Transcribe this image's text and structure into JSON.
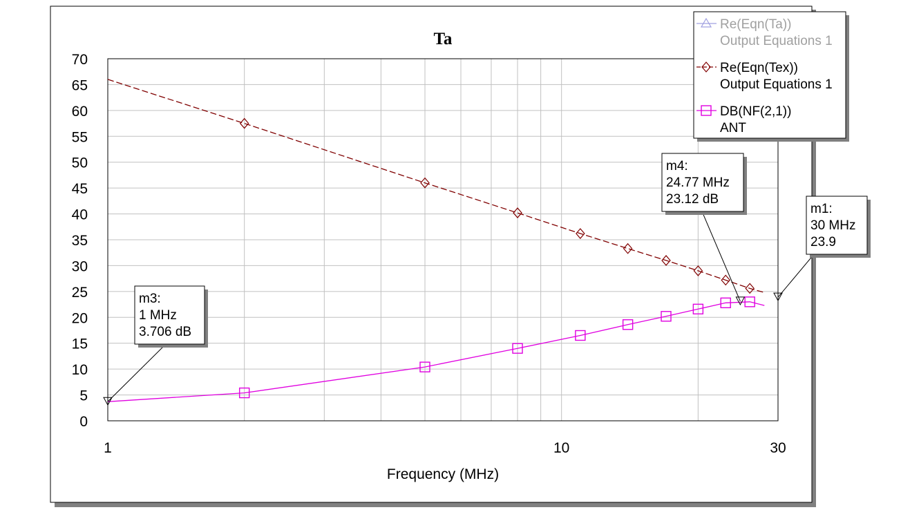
{
  "chart_data": {
    "type": "line",
    "title": "Ta",
    "xlabel": "Frequency (MHz)",
    "ylabel": "",
    "x_scale": "log",
    "xlim": [
      1,
      30
    ],
    "ylim": [
      0,
      70
    ],
    "x_ticks": [
      "1",
      "10",
      "30"
    ],
    "y_ticks": [
      "0",
      "5",
      "10",
      "15",
      "20",
      "25",
      "30",
      "35",
      "40",
      "45",
      "50",
      "55",
      "60",
      "65",
      "70"
    ],
    "grid": true,
    "legend_position": "top-right",
    "series": [
      {
        "name": "Re(Eqn(Ta))",
        "subname": "Output Equations 1",
        "color": "#a0a0e0",
        "style": "solid",
        "marker": "triangle",
        "x": [],
        "y": []
      },
      {
        "name": "Re(Eqn(Tex))",
        "subname": "Output Equations 1",
        "color": "#800000",
        "style": "dashed",
        "marker": "diamond",
        "x": [
          1,
          2,
          5,
          8,
          11,
          14,
          17,
          20,
          23,
          26,
          28
        ],
        "y": [
          66,
          57.5,
          46,
          40.2,
          36.2,
          33.3,
          31,
          29,
          27.2,
          25.6,
          24.8
        ],
        "marker_x": [
          2,
          5,
          8,
          11,
          14,
          17,
          20,
          23,
          26
        ]
      },
      {
        "name": "DB(NF(2,1))",
        "subname": "ANT",
        "color": "#e000e0",
        "style": "solid",
        "marker": "square",
        "x": [
          1,
          2,
          5,
          8,
          11,
          14,
          17,
          20,
          23,
          26,
          28
        ],
        "y": [
          3.706,
          5.4,
          10.4,
          14,
          16.5,
          18.6,
          20.2,
          21.6,
          22.8,
          23,
          22.3
        ],
        "marker_x": [
          2,
          5,
          8,
          11,
          14,
          17,
          20,
          23,
          26
        ]
      }
    ],
    "markers": [
      {
        "name": "m3",
        "lines": [
          "m3:",
          "1 MHz",
          "3.706 dB"
        ],
        "x": 1,
        "y": 3.706
      },
      {
        "name": "m4",
        "lines": [
          "m4:",
          "24.77 MHz",
          "23.12 dB"
        ],
        "x": 24.77,
        "y": 23.12
      },
      {
        "name": "m1",
        "lines": [
          "m1:",
          "30 MHz",
          "23.9"
        ],
        "x": 30,
        "y": 23.9
      }
    ]
  }
}
